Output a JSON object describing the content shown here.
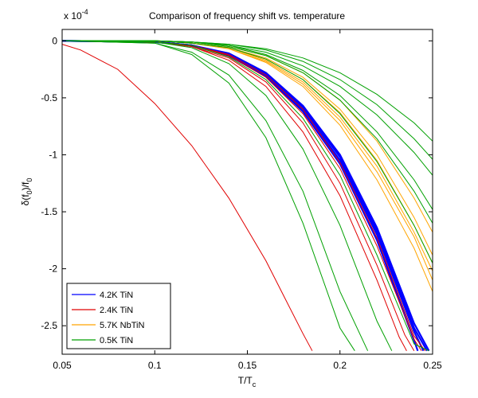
{
  "chart_data": {
    "type": "line",
    "title": "Comparison of frequency shift vs. temperature",
    "xlabel": "T/T",
    "xlabel_sub": "c",
    "ylabel_parts": [
      "δ(f",
      "0",
      ")/f",
      "0"
    ],
    "yexponent_base": "x 10",
    "yexponent_power": "-4",
    "xlim": [
      0.05,
      0.25
    ],
    "ylim": [
      -2.75,
      0.1
    ],
    "x_ticks": [
      0.05,
      0.1,
      0.15,
      0.2,
      0.25
    ],
    "x_tick_labels": [
      "0.05",
      "0.1",
      "0.15",
      "0.2",
      "0.25"
    ],
    "y_ticks": [
      0,
      -0.5,
      -1,
      -1.5,
      -2,
      -2.5
    ],
    "y_tick_labels": [
      "0",
      "-0.5",
      "-1",
      "-1.5",
      "-2",
      "-2.5"
    ],
    "grid": false,
    "legend_position": "bottom-left",
    "colors": {
      "4.2K TiN": "#0000ff",
      "2.4K TiN": "#e00000",
      "5.7K NbTiN": "#ffa500",
      "0.5K TiN": "#00a000"
    },
    "legend": [
      "4.2K TiN",
      "2.4K TiN",
      "5.7K NbTiN",
      "0.5K TiN"
    ],
    "series": [
      {
        "name": "4.2K TiN",
        "group": "4.2K TiN",
        "x": [
          0.05,
          0.1,
          0.12,
          0.14,
          0.16,
          0.18,
          0.2,
          0.22,
          0.24,
          0.245
        ],
        "y": [
          0,
          -0.01,
          -0.04,
          -0.12,
          -0.3,
          -0.6,
          -1.05,
          -1.7,
          -2.55,
          -2.72
        ]
      },
      {
        "name": "4.2K TiN",
        "group": "4.2K TiN",
        "x": [
          0.05,
          0.1,
          0.12,
          0.14,
          0.16,
          0.18,
          0.2,
          0.22,
          0.24,
          0.242
        ],
        "y": [
          0,
          -0.01,
          -0.04,
          -0.13,
          -0.31,
          -0.62,
          -1.08,
          -1.75,
          -2.63,
          -2.72
        ]
      },
      {
        "name": "4.2K TiN",
        "group": "4.2K TiN",
        "x": [
          0.05,
          0.1,
          0.12,
          0.14,
          0.16,
          0.18,
          0.2,
          0.22,
          0.24,
          0.248
        ],
        "y": [
          0,
          -0.01,
          -0.04,
          -0.11,
          -0.28,
          -0.57,
          -1.0,
          -1.64,
          -2.48,
          -2.72
        ]
      },
      {
        "name": "4.2K TiN",
        "group": "4.2K TiN",
        "x": [
          0.05,
          0.1,
          0.12,
          0.14,
          0.16,
          0.18,
          0.2,
          0.22,
          0.24,
          0.247
        ],
        "y": [
          0,
          -0.01,
          -0.04,
          -0.12,
          -0.29,
          -0.58,
          -1.02,
          -1.67,
          -2.52,
          -2.72
        ]
      },
      {
        "name": "2.4K TiN",
        "group": "2.4K TiN",
        "x": [
          0.05,
          0.06,
          0.08,
          0.1,
          0.12,
          0.14,
          0.16,
          0.17,
          0.18,
          0.185
        ],
        "y": [
          -0.03,
          -0.08,
          -0.25,
          -0.55,
          -0.92,
          -1.38,
          -1.93,
          -2.25,
          -2.57,
          -2.72
        ]
      },
      {
        "name": "2.4K TiN",
        "group": "2.4K TiN",
        "x": [
          0.05,
          0.1,
          0.12,
          0.14,
          0.16,
          0.18,
          0.2,
          0.22,
          0.24,
          0.246
        ],
        "y": [
          0,
          -0.01,
          -0.04,
          -0.12,
          -0.3,
          -0.6,
          -1.07,
          -1.73,
          -2.59,
          -2.72
        ]
      },
      {
        "name": "2.4K TiN",
        "group": "2.4K TiN",
        "x": [
          0.05,
          0.1,
          0.12,
          0.14,
          0.16,
          0.18,
          0.2,
          0.22,
          0.235,
          0.24
        ],
        "y": [
          0,
          -0.01,
          -0.05,
          -0.15,
          -0.36,
          -0.72,
          -1.25,
          -1.97,
          -2.58,
          -2.72
        ]
      },
      {
        "name": "2.4K TiN",
        "group": "2.4K TiN",
        "x": [
          0.05,
          0.1,
          0.12,
          0.14,
          0.16,
          0.18,
          0.2,
          0.22,
          0.232,
          0.236
        ],
        "y": [
          0,
          -0.01,
          -0.05,
          -0.17,
          -0.4,
          -0.8,
          -1.36,
          -2.1,
          -2.6,
          -2.72
        ]
      },
      {
        "name": "2.4K TiN",
        "group": "2.4K TiN",
        "x": [
          0.05,
          0.1,
          0.12,
          0.14,
          0.16,
          0.18,
          0.2,
          0.22,
          0.24,
          0.244
        ],
        "y": [
          0,
          -0.01,
          -0.04,
          -0.13,
          -0.32,
          -0.64,
          -1.12,
          -1.8,
          -2.62,
          -2.72
        ]
      },
      {
        "name": "5.7K NbTiN",
        "group": "5.7K NbTiN",
        "x": [
          0.05,
          0.1,
          0.12,
          0.14,
          0.16,
          0.18,
          0.2,
          0.22,
          0.24,
          0.25
        ],
        "y": [
          0,
          0,
          -0.02,
          -0.07,
          -0.18,
          -0.38,
          -0.7,
          -1.15,
          -1.72,
          -2.1
        ]
      },
      {
        "name": "5.7K NbTiN",
        "group": "5.7K NbTiN",
        "x": [
          0.05,
          0.1,
          0.12,
          0.14,
          0.16,
          0.18,
          0.2,
          0.22,
          0.24,
          0.25
        ],
        "y": [
          0,
          0,
          -0.02,
          -0.06,
          -0.16,
          -0.34,
          -0.63,
          -1.05,
          -1.62,
          -1.95
        ]
      },
      {
        "name": "5.7K NbTiN",
        "group": "5.7K NbTiN",
        "x": [
          0.05,
          0.1,
          0.12,
          0.14,
          0.16,
          0.18,
          0.2,
          0.22,
          0.24,
          0.25
        ],
        "y": [
          0,
          0,
          -0.02,
          -0.07,
          -0.19,
          -0.4,
          -0.74,
          -1.22,
          -1.82,
          -2.2
        ]
      },
      {
        "name": "5.7K NbTiN",
        "group": "5.7K NbTiN",
        "x": [
          0.05,
          0.1,
          0.12,
          0.14,
          0.16,
          0.18,
          0.2,
          0.22,
          0.24,
          0.25
        ],
        "y": [
          0,
          0,
          -0.02,
          -0.06,
          -0.15,
          -0.32,
          -0.6,
          -1.0,
          -1.55,
          -1.88
        ]
      },
      {
        "name": "5.7K NbTiN",
        "group": "5.7K NbTiN",
        "x": [
          0.05,
          0.1,
          0.12,
          0.14,
          0.16,
          0.18,
          0.2,
          0.22,
          0.24,
          0.25
        ],
        "y": [
          0,
          0,
          -0.01,
          -0.05,
          -0.13,
          -0.28,
          -0.52,
          -0.88,
          -1.38,
          -1.68
        ]
      },
      {
        "name": "5.7K NbTiN",
        "group": "5.7K NbTiN",
        "x": [
          0.05,
          0.1,
          0.12,
          0.14,
          0.16,
          0.18,
          0.2,
          0.22,
          0.24,
          0.25
        ],
        "y": [
          0,
          0,
          -0.02,
          -0.06,
          -0.17,
          -0.36,
          -0.67,
          -1.1,
          -1.68,
          -2.02
        ]
      },
      {
        "name": "0.5K TiN",
        "group": "0.5K TiN",
        "x": [
          0.05,
          0.1,
          0.12,
          0.14,
          0.16,
          0.18,
          0.2,
          0.22,
          0.24,
          0.25
        ],
        "y": [
          0,
          0,
          -0.01,
          -0.04,
          -0.1,
          -0.22,
          -0.4,
          -0.65,
          -0.98,
          -1.18
        ]
      },
      {
        "name": "0.5K TiN",
        "group": "0.5K TiN",
        "x": [
          0.05,
          0.1,
          0.12,
          0.14,
          0.16,
          0.18,
          0.2,
          0.22,
          0.24,
          0.25
        ],
        "y": [
          0,
          0,
          -0.01,
          -0.03,
          -0.08,
          -0.18,
          -0.34,
          -0.56,
          -0.86,
          -1.04
        ]
      },
      {
        "name": "0.5K TiN",
        "group": "0.5K TiN",
        "x": [
          0.05,
          0.1,
          0.12,
          0.14,
          0.16,
          0.18,
          0.2,
          0.22,
          0.24,
          0.25
        ],
        "y": [
          0,
          0,
          -0.01,
          -0.03,
          -0.07,
          -0.15,
          -0.28,
          -0.47,
          -0.72,
          -0.88
        ]
      },
      {
        "name": "0.5K TiN",
        "group": "0.5K TiN",
        "x": [
          0.05,
          0.1,
          0.12,
          0.14,
          0.16,
          0.18,
          0.2,
          0.22,
          0.24,
          0.25
        ],
        "y": [
          0,
          0,
          -0.01,
          -0.05,
          -0.13,
          -0.28,
          -0.52,
          -0.86,
          -1.32,
          -1.6
        ]
      },
      {
        "name": "0.5K TiN",
        "group": "0.5K TiN",
        "x": [
          0.05,
          0.1,
          0.12,
          0.14,
          0.16,
          0.18,
          0.2,
          0.22,
          0.24,
          0.25
        ],
        "y": [
          0,
          0,
          -0.02,
          -0.06,
          -0.16,
          -0.34,
          -0.64,
          -1.06,
          -1.62,
          -1.95
        ]
      },
      {
        "name": "0.5K TiN",
        "group": "0.5K TiN",
        "x": [
          0.05,
          0.1,
          0.12,
          0.14,
          0.16,
          0.18,
          0.2,
          0.22,
          0.24,
          0.25
        ],
        "y": [
          0,
          0,
          -0.01,
          -0.04,
          -0.12,
          -0.26,
          -0.48,
          -0.8,
          -1.22,
          -1.48
        ]
      },
      {
        "name": "0.5K TiN",
        "group": "0.5K TiN",
        "x": [
          0.05,
          0.1,
          0.12,
          0.14,
          0.16,
          0.18,
          0.2,
          0.22,
          0.24,
          0.248
        ],
        "y": [
          0,
          -0.01,
          -0.04,
          -0.14,
          -0.34,
          -0.68,
          -1.18,
          -1.88,
          -2.66,
          -2.72
        ]
      },
      {
        "name": "0.5K TiN",
        "group": "0.5K TiN",
        "x": [
          0.05,
          0.1,
          0.12,
          0.14,
          0.16,
          0.18,
          0.2,
          0.22,
          0.228
        ],
        "y": [
          0,
          -0.01,
          -0.06,
          -0.2,
          -0.48,
          -0.95,
          -1.62,
          -2.46,
          -2.72
        ]
      },
      {
        "name": "0.5K TiN",
        "group": "0.5K TiN",
        "x": [
          0.05,
          0.1,
          0.12,
          0.14,
          0.16,
          0.18,
          0.2,
          0.215
        ],
        "y": [
          0,
          -0.02,
          -0.1,
          -0.3,
          -0.7,
          -1.32,
          -2.2,
          -2.72
        ]
      },
      {
        "name": "0.5K TiN",
        "group": "0.5K TiN",
        "x": [
          0.05,
          0.1,
          0.12,
          0.14,
          0.16,
          0.18,
          0.2,
          0.208
        ],
        "y": [
          0,
          -0.02,
          -0.12,
          -0.37,
          -0.85,
          -1.6,
          -2.52,
          -2.72
        ]
      }
    ]
  }
}
